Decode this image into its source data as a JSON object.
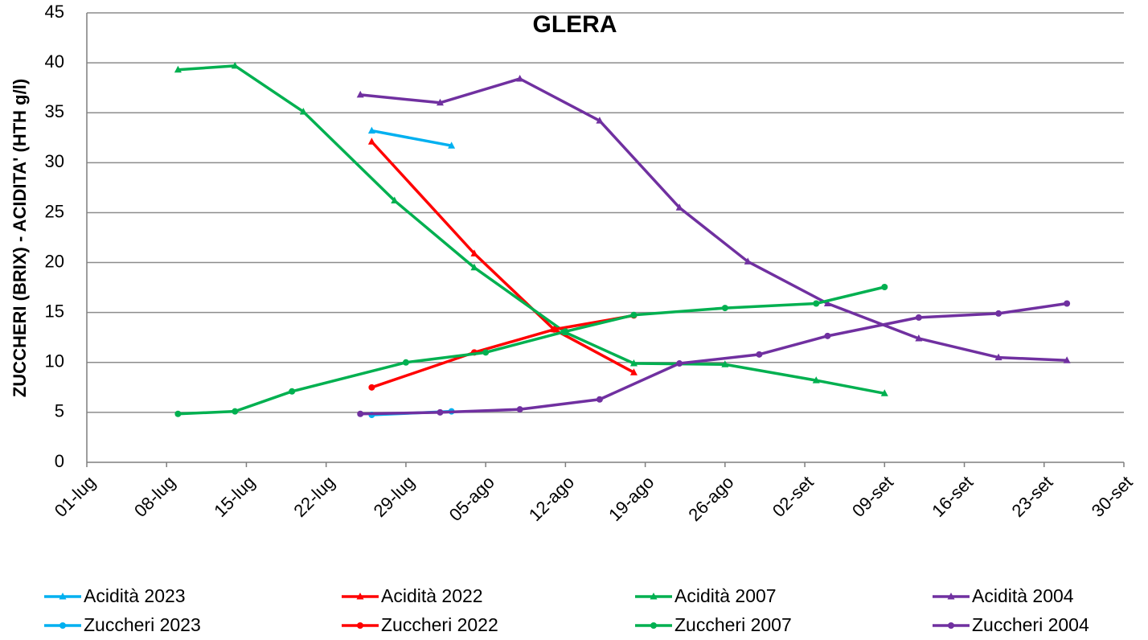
{
  "chart_data": {
    "type": "line",
    "title": "GLERA",
    "y_label": "ZUCCHERI (BRIX) - ACIDITA' (HTH g/l)",
    "ylim": [
      0,
      45
    ],
    "yticks": [
      0,
      5,
      10,
      15,
      20,
      25,
      30,
      35,
      40,
      45
    ],
    "grid": true,
    "legend": "bottom",
    "xticks": [
      "01-lug",
      "08-lug",
      "15-lug",
      "22-lug",
      "29-lug",
      "05-ago",
      "12-ago",
      "19-ago",
      "26-ago",
      "02-set",
      "09-set",
      "16-set",
      "23-set",
      "30-set"
    ],
    "series": [
      {
        "name": "Acidità 2023",
        "color": "#00b0f0",
        "marker": "triangle",
        "x": [
          "26-lug",
          "02-ago"
        ],
        "values": [
          33.2,
          31.7
        ]
      },
      {
        "name": "Acidità 2022",
        "color": "#ff0000",
        "marker": "triangle",
        "x": [
          "26-lug",
          "04-ago",
          "11-ago",
          "18-ago"
        ],
        "values": [
          32.1,
          20.9,
          13.3,
          9.0
        ]
      },
      {
        "name": "Acidità 2007",
        "color": "#00b050",
        "marker": "triangle",
        "x": [
          "09-lug",
          "14-lug",
          "20-lug",
          "28-lug",
          "04-ago",
          "12-ago",
          "18-ago",
          "26-ago",
          "03-set",
          "09-set"
        ],
        "values": [
          39.3,
          39.7,
          35.1,
          26.2,
          19.5,
          13.0,
          9.9,
          9.8,
          8.2,
          6.9
        ]
      },
      {
        "name": "Acidità 2004",
        "color": "#7030a0",
        "marker": "triangle",
        "x": [
          "25-lug",
          "01-ago",
          "08-ago",
          "15-ago",
          "22-ago",
          "28-ago",
          "04-set",
          "12-set",
          "19-set",
          "25-set"
        ],
        "values": [
          36.8,
          36.0,
          38.4,
          34.2,
          25.5,
          20.1,
          15.9,
          12.4,
          10.5,
          10.2
        ]
      },
      {
        "name": "Zuccheri 2023",
        "color": "#00b0f0",
        "marker": "circle",
        "x": [
          "26-lug",
          "02-ago"
        ],
        "values": [
          4.75,
          5.1
        ]
      },
      {
        "name": "Zuccheri 2022",
        "color": "#ff0000",
        "marker": "circle",
        "x": [
          "26-lug",
          "04-ago",
          "11-ago",
          "18-ago"
        ],
        "values": [
          7.5,
          11.0,
          13.3,
          14.7
        ]
      },
      {
        "name": "Zuccheri 2007",
        "color": "#00b050",
        "marker": "circle",
        "x": [
          "09-lug",
          "14-lug",
          "19-lug",
          "29-lug",
          "05-ago",
          "12-ago",
          "18-ago",
          "26-ago",
          "03-set",
          "09-set"
        ],
        "values": [
          4.85,
          5.1,
          7.1,
          10.0,
          11.0,
          13.1,
          14.75,
          15.45,
          15.9,
          17.55
        ]
      },
      {
        "name": "Zuccheri 2004",
        "color": "#7030a0",
        "marker": "circle",
        "x": [
          "25-lug",
          "01-ago",
          "08-ago",
          "15-ago",
          "22-ago",
          "29-ago",
          "04-set",
          "12-set",
          "19-set",
          "25-set"
        ],
        "values": [
          4.85,
          5.0,
          5.3,
          6.3,
          9.9,
          10.8,
          12.65,
          14.5,
          14.9,
          15.9
        ]
      }
    ]
  }
}
